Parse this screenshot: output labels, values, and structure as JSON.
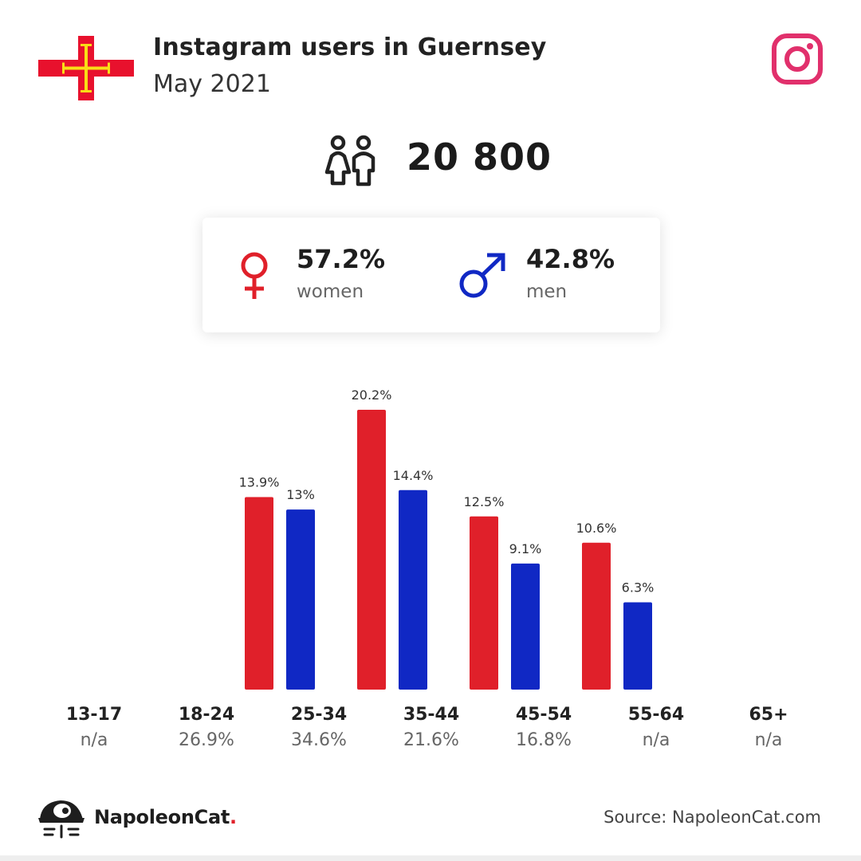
{
  "header": {
    "title": "Instagram users in Guernsey",
    "subtitle": "May 2021"
  },
  "summary": {
    "total": "20 800",
    "women_pct": "57.2%",
    "women_label": "women",
    "men_pct": "42.8%",
    "men_label": "men"
  },
  "chart_data": {
    "type": "bar",
    "categories": [
      "13-17",
      "18-24",
      "25-34",
      "35-44",
      "45-54",
      "55-64",
      "65+"
    ],
    "category_totals": [
      "n/a",
      "26.9%",
      "34.6%",
      "21.6%",
      "16.8%",
      "n/a",
      "n/a"
    ],
    "series": [
      {
        "name": "women",
        "color": "#e0202a",
        "values": [
          null,
          13.9,
          20.2,
          12.5,
          10.6,
          null,
          null
        ],
        "labels": [
          "",
          "13.9%",
          "20.2%",
          "12.5%",
          "10.6%",
          "",
          ""
        ]
      },
      {
        "name": "men",
        "color": "#1028c4",
        "values": [
          null,
          13.0,
          14.4,
          9.1,
          6.3,
          null,
          null
        ],
        "labels": [
          "",
          "13%",
          "14.4%",
          "9.1%",
          "6.3%",
          "",
          ""
        ]
      }
    ],
    "title": "",
    "xlabel": "",
    "ylabel": "",
    "ylim": [
      0,
      20.2
    ]
  },
  "footer": {
    "brand": "NapoleonCat",
    "brand_dot": ".",
    "source": "Source: NapoleonCat.com"
  },
  "colors": {
    "women": "#e0202a",
    "men": "#1028c4",
    "instagram": "#e1306c",
    "flag_red": "#e8112d",
    "flag_gold": "#f9dd16"
  },
  "icons": [
    "guernsey-flag",
    "instagram-icon",
    "people-icon",
    "female-symbol-icon",
    "male-symbol-icon",
    "napoleoncat-logo-icon"
  ]
}
